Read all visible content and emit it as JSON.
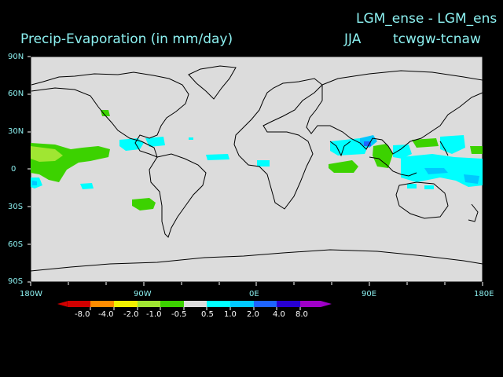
{
  "header": {
    "line1": "LGM_ense - LGM_ens",
    "season": "JJA",
    "variables": "tcwgw-tcnaw",
    "plot_title": "Precip-Evaporation (in mm/day)"
  },
  "axes": {
    "lat_labels": [
      "90N",
      "60N",
      "30N",
      "0",
      "30S",
      "60S",
      "90S"
    ],
    "lon_labels": [
      "180W",
      "90W",
      "0E",
      "90E",
      "180E"
    ]
  },
  "colorbar": {
    "labels": [
      "-8.0",
      "-4.0",
      "-2.0",
      "-1.0",
      "-0.5",
      "0.5",
      "1.0",
      "2.0",
      "4.0",
      "8.0"
    ],
    "colors": [
      "#d20000",
      "#ff8c00",
      "#f0f000",
      "#a0e632",
      "#3cd200",
      "#dcdcdc",
      "#00ffff",
      "#00c8ff",
      "#1e64ff",
      "#2800d2",
      "#a000c8"
    ]
  },
  "colors": {
    "background": "#000000",
    "map_fill": "#dcdcdc",
    "text": "#8cf0f0"
  }
}
